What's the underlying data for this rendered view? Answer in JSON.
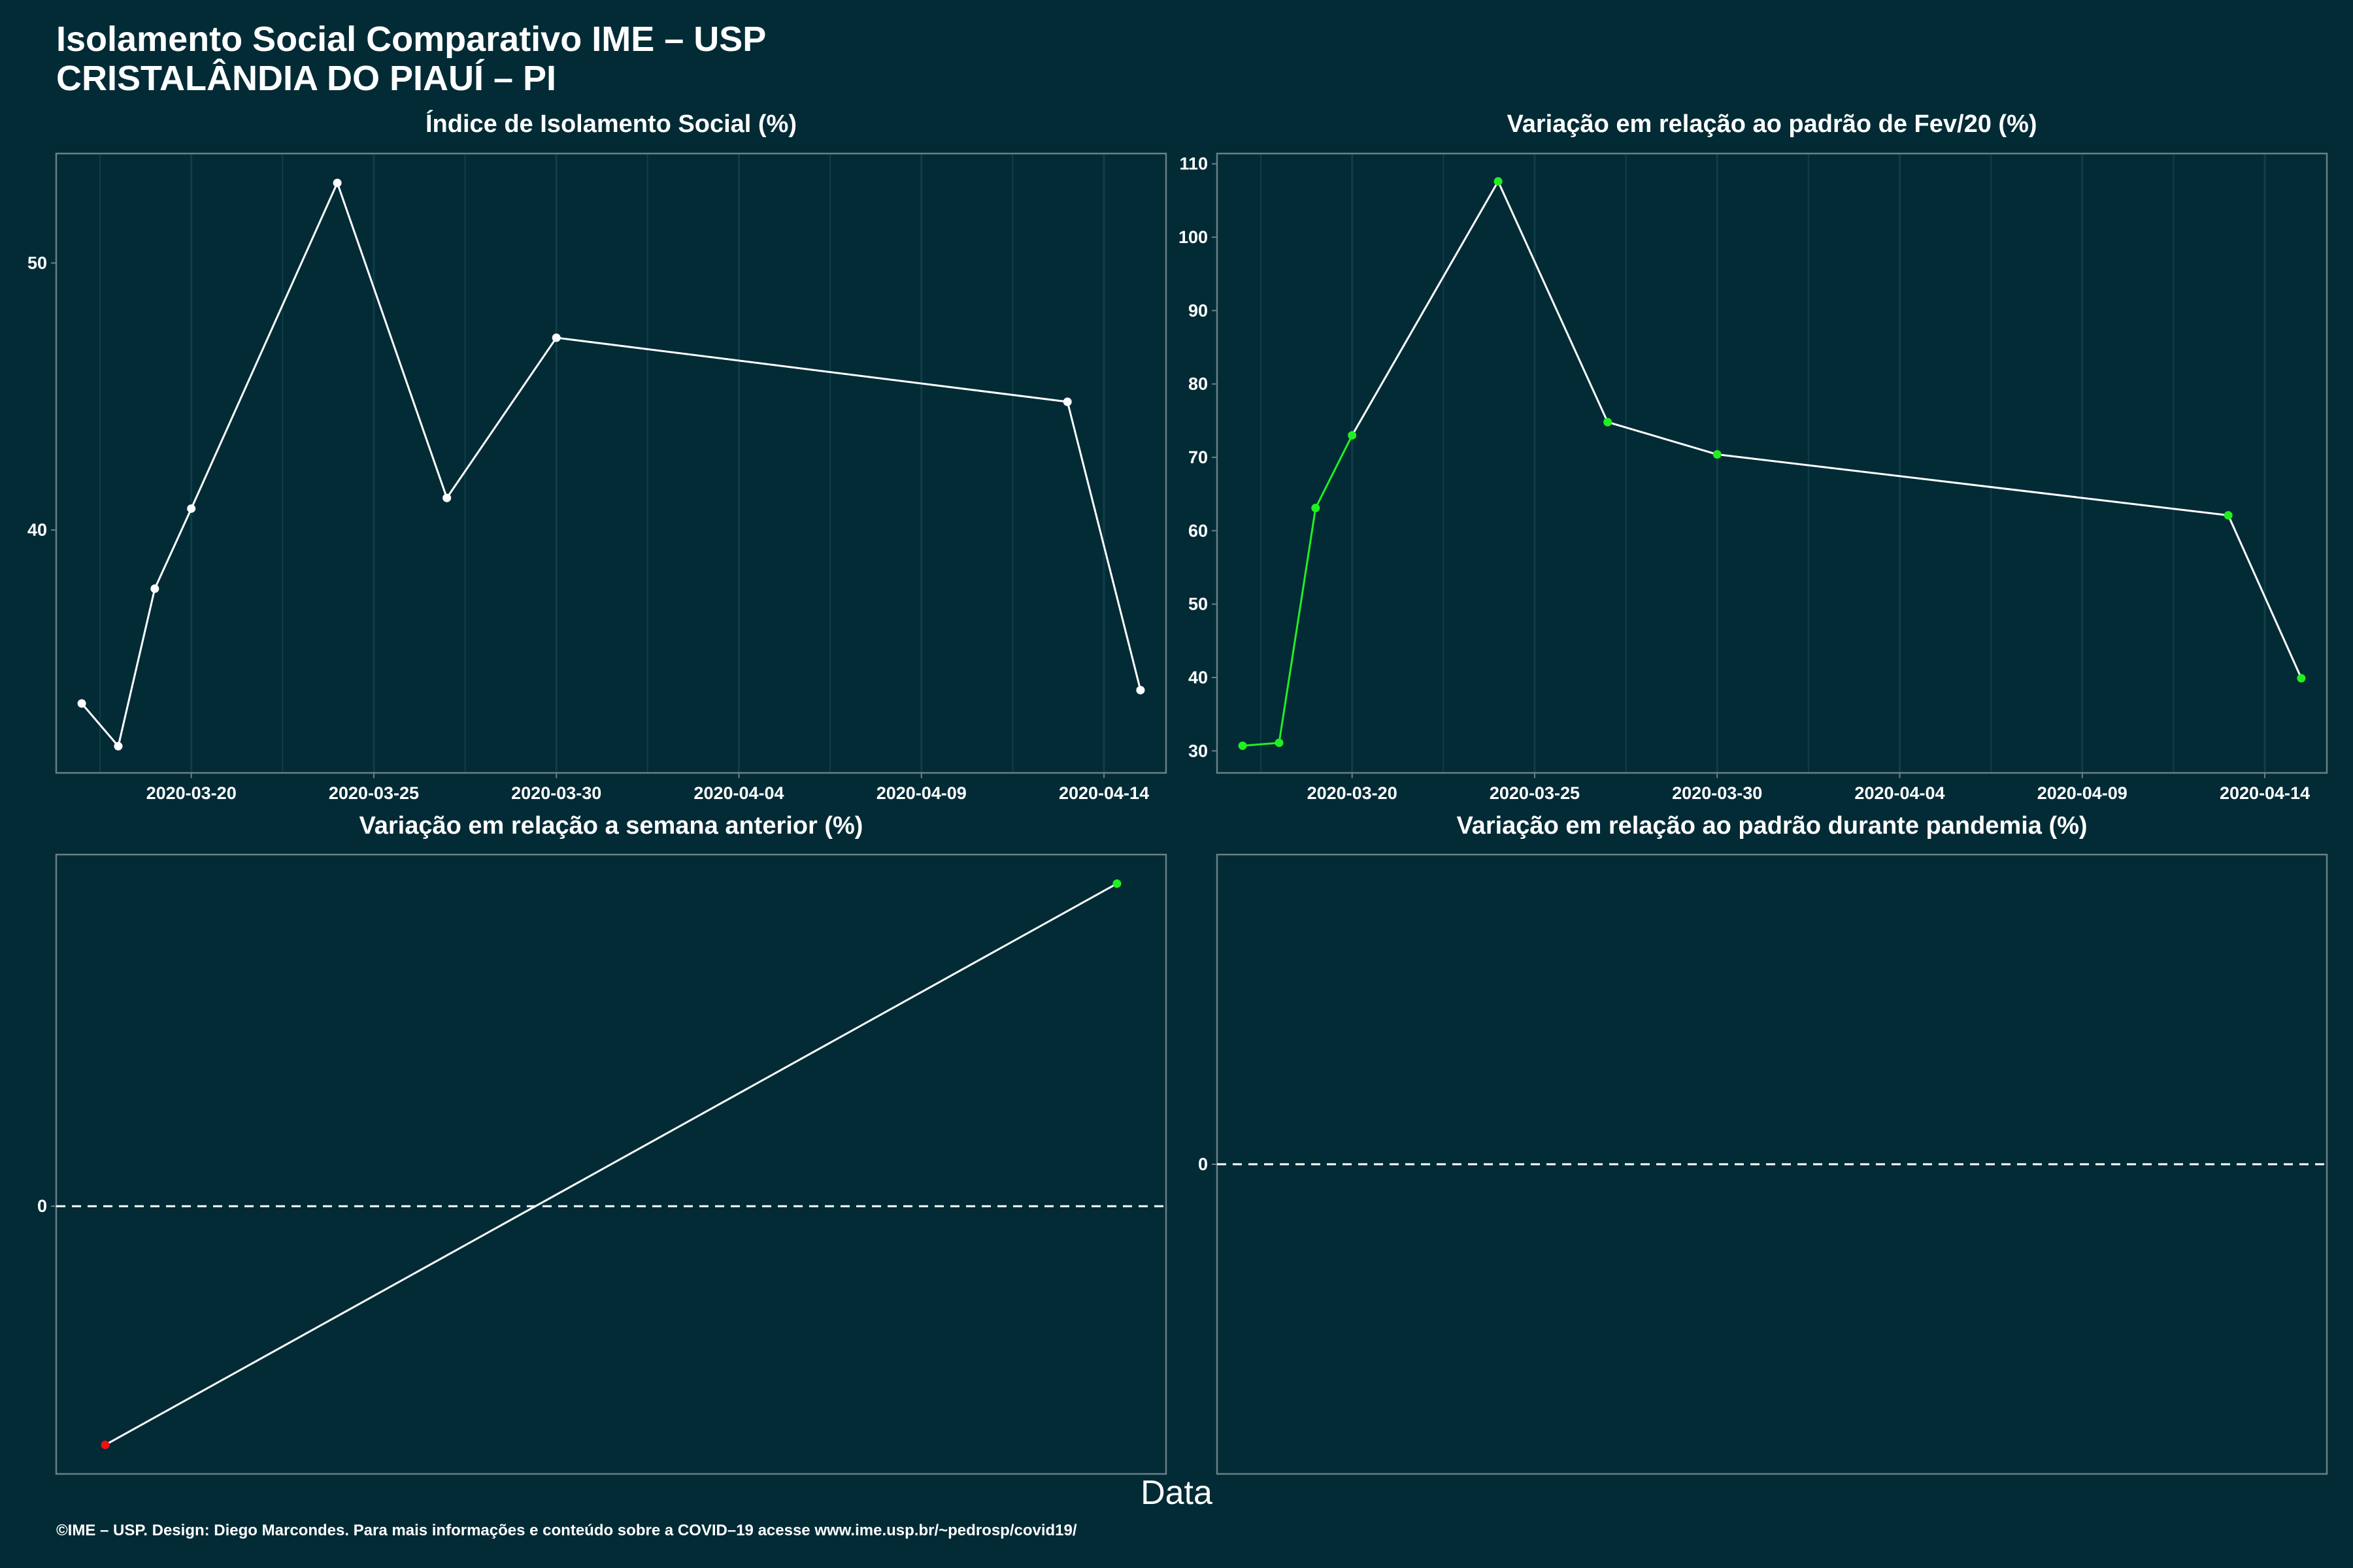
{
  "header": {
    "title": "Isolamento Social Comparativo IME – USP",
    "subtitle": "CRISTALÂNDIA DO PIAUÍ – PI"
  },
  "x_axis_label": "Data",
  "caption": "©IME – USP. Design: Diego Marcondes. Para mais informações e conteúdo sobre a COVID–19 acesse www.ime.usp.br/~pedrosp/covid19/",
  "colors": {
    "background": "#022b36",
    "line": "#ffffff",
    "point_default": "#ffffff",
    "point_positive": "#22ee22",
    "point_negative": "#ee1111",
    "grid": "#0f3e49",
    "frame": "#6b7f85"
  },
  "chart_data": [
    {
      "id": "isolamento",
      "type": "line",
      "title": "Índice de Isolamento Social (%)",
      "x": [
        "2020-03-17",
        "2020-03-18",
        "2020-03-19",
        "2020-03-20",
        "2020-03-24",
        "2020-03-27",
        "2020-03-30",
        "2020-04-13",
        "2020-04-15"
      ],
      "y": [
        33.5,
        31.9,
        37.8,
        40.8,
        53.0,
        41.2,
        47.2,
        44.8,
        34.0
      ],
      "xticks": [
        "2020-03-20",
        "2020-03-25",
        "2020-03-30",
        "2020-04-04",
        "2020-04-09",
        "2020-04-14"
      ],
      "yticks": [
        40,
        50
      ],
      "ylim": [
        30.9,
        54.1
      ],
      "grid": true
    },
    {
      "id": "fev20",
      "type": "line",
      "title": "Variação em relação ao padrão de Fev/20 (%)",
      "x": [
        "2020-03-17",
        "2020-03-18",
        "2020-03-19",
        "2020-03-20",
        "2020-03-24",
        "2020-03-27",
        "2020-03-30",
        "2020-04-13",
        "2020-04-15"
      ],
      "y": [
        30.7,
        31.1,
        63.1,
        73.0,
        107.6,
        74.8,
        70.4,
        62.1,
        39.9
      ],
      "xticks": [
        "2020-03-20",
        "2020-03-25",
        "2020-03-30",
        "2020-04-04",
        "2020-04-09",
        "2020-04-14"
      ],
      "yticks": [
        30,
        40,
        50,
        60,
        70,
        80,
        90,
        100,
        110
      ],
      "ylim": [
        27.0,
        111.4
      ],
      "grid": true
    },
    {
      "id": "semana",
      "type": "line",
      "title": "Variação em relação a semana anterior (%)",
      "x": [
        0,
        1
      ],
      "y": [
        -0.74,
        1.0
      ],
      "yticks": [
        0
      ],
      "ylim": [
        -0.83,
        1.09
      ],
      "zero_line": true,
      "grid": false
    },
    {
      "id": "pandemia",
      "type": "line",
      "title": "Variação em relação ao padrão durante pandemia (%)",
      "x": [],
      "y": [],
      "yticks": [
        0
      ],
      "ylim": [
        -1,
        1
      ],
      "zero_line": true,
      "grid": false
    }
  ]
}
